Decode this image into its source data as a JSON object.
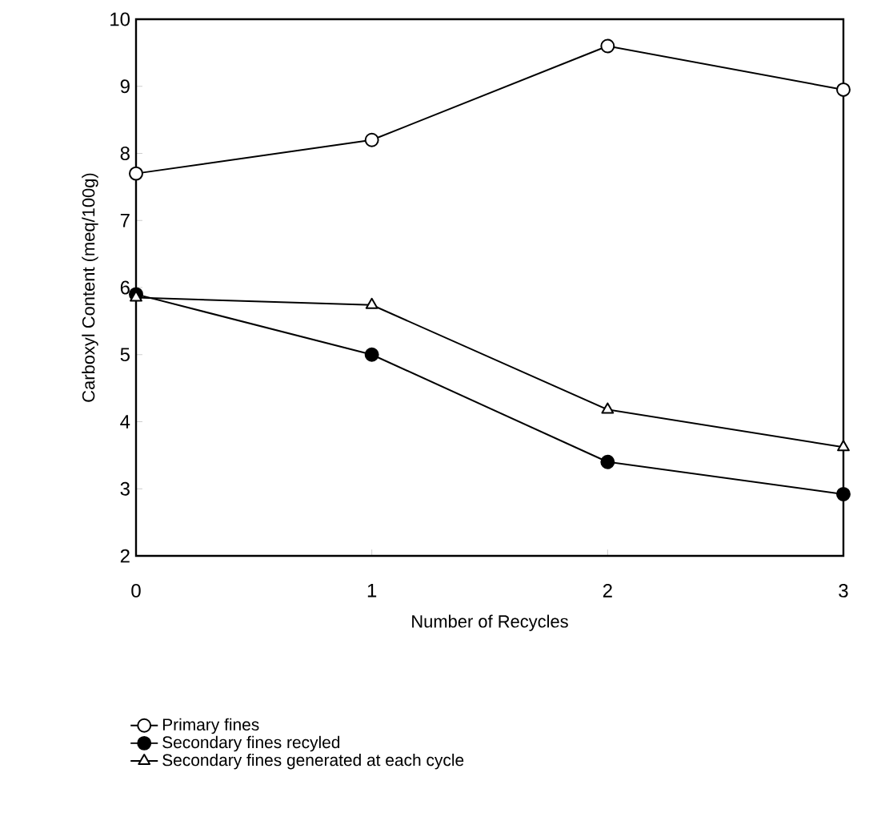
{
  "chart_data": {
    "type": "line",
    "xlabel": "Number of Recycles",
    "ylabel": "Carboxyl Content (meq/100g)",
    "x": [
      0,
      1,
      2,
      3
    ],
    "xlim": [
      0,
      3
    ],
    "xticks": [
      0,
      1,
      2,
      3
    ],
    "ylim": [
      2,
      10
    ],
    "yticks": [
      2,
      3,
      4,
      5,
      6,
      7,
      8,
      9,
      10
    ],
    "grid": false,
    "legend": "bottom left",
    "line_style": "solid",
    "series": [
      {
        "name": "Primary fines",
        "color": "#000000",
        "marker": "circle",
        "values": [
          7.7,
          8.2,
          9.6,
          8.95
        ]
      },
      {
        "name": "Secondary fines recyled",
        "color": "#000000",
        "marker": "circle",
        "values": [
          5.9,
          5.0,
          3.4,
          2.92
        ]
      },
      {
        "name": "Secondary fines generated at each cycle",
        "color": "#000000",
        "marker": "triangle",
        "values": [
          5.85,
          5.74,
          4.18,
          3.62
        ]
      }
    ]
  }
}
